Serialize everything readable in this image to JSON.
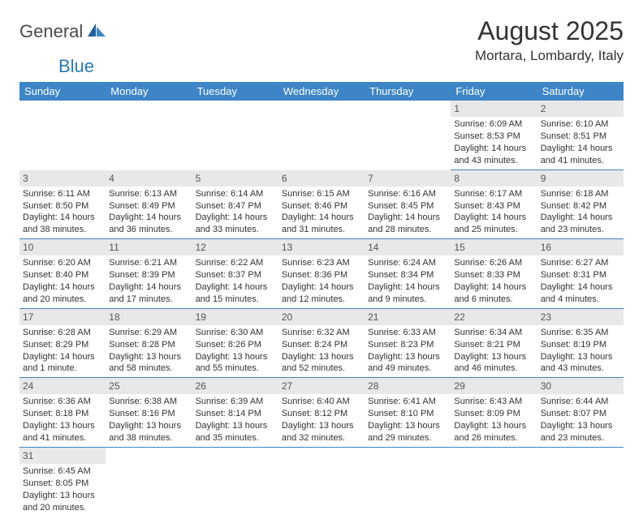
{
  "brand": {
    "general": "General",
    "blue": "Blue"
  },
  "title": {
    "month": "August 2025",
    "location": "Mortara, Lombardy, Italy"
  },
  "colors": {
    "header_bg": "#3d85c6",
    "header_text": "#ffffff",
    "daynum_bg": "#e8e8e8",
    "border": "#3d85c6",
    "logo_blue": "#2a7ab8",
    "text": "#333333"
  },
  "daysOfWeek": [
    "Sunday",
    "Monday",
    "Tuesday",
    "Wednesday",
    "Thursday",
    "Friday",
    "Saturday"
  ],
  "weeks": [
    [
      null,
      null,
      null,
      null,
      null,
      {
        "n": "1",
        "sunrise": "Sunrise: 6:09 AM",
        "sunset": "Sunset: 8:53 PM",
        "daylight": "Daylight: 14 hours and 43 minutes."
      },
      {
        "n": "2",
        "sunrise": "Sunrise: 6:10 AM",
        "sunset": "Sunset: 8:51 PM",
        "daylight": "Daylight: 14 hours and 41 minutes."
      }
    ],
    [
      {
        "n": "3",
        "sunrise": "Sunrise: 6:11 AM",
        "sunset": "Sunset: 8:50 PM",
        "daylight": "Daylight: 14 hours and 38 minutes."
      },
      {
        "n": "4",
        "sunrise": "Sunrise: 6:13 AM",
        "sunset": "Sunset: 8:49 PM",
        "daylight": "Daylight: 14 hours and 36 minutes."
      },
      {
        "n": "5",
        "sunrise": "Sunrise: 6:14 AM",
        "sunset": "Sunset: 8:47 PM",
        "daylight": "Daylight: 14 hours and 33 minutes."
      },
      {
        "n": "6",
        "sunrise": "Sunrise: 6:15 AM",
        "sunset": "Sunset: 8:46 PM",
        "daylight": "Daylight: 14 hours and 31 minutes."
      },
      {
        "n": "7",
        "sunrise": "Sunrise: 6:16 AM",
        "sunset": "Sunset: 8:45 PM",
        "daylight": "Daylight: 14 hours and 28 minutes."
      },
      {
        "n": "8",
        "sunrise": "Sunrise: 6:17 AM",
        "sunset": "Sunset: 8:43 PM",
        "daylight": "Daylight: 14 hours and 25 minutes."
      },
      {
        "n": "9",
        "sunrise": "Sunrise: 6:18 AM",
        "sunset": "Sunset: 8:42 PM",
        "daylight": "Daylight: 14 hours and 23 minutes."
      }
    ],
    [
      {
        "n": "10",
        "sunrise": "Sunrise: 6:20 AM",
        "sunset": "Sunset: 8:40 PM",
        "daylight": "Daylight: 14 hours and 20 minutes."
      },
      {
        "n": "11",
        "sunrise": "Sunrise: 6:21 AM",
        "sunset": "Sunset: 8:39 PM",
        "daylight": "Daylight: 14 hours and 17 minutes."
      },
      {
        "n": "12",
        "sunrise": "Sunrise: 6:22 AM",
        "sunset": "Sunset: 8:37 PM",
        "daylight": "Daylight: 14 hours and 15 minutes."
      },
      {
        "n": "13",
        "sunrise": "Sunrise: 6:23 AM",
        "sunset": "Sunset: 8:36 PM",
        "daylight": "Daylight: 14 hours and 12 minutes."
      },
      {
        "n": "14",
        "sunrise": "Sunrise: 6:24 AM",
        "sunset": "Sunset: 8:34 PM",
        "daylight": "Daylight: 14 hours and 9 minutes."
      },
      {
        "n": "15",
        "sunrise": "Sunrise: 6:26 AM",
        "sunset": "Sunset: 8:33 PM",
        "daylight": "Daylight: 14 hours and 6 minutes."
      },
      {
        "n": "16",
        "sunrise": "Sunrise: 6:27 AM",
        "sunset": "Sunset: 8:31 PM",
        "daylight": "Daylight: 14 hours and 4 minutes."
      }
    ],
    [
      {
        "n": "17",
        "sunrise": "Sunrise: 6:28 AM",
        "sunset": "Sunset: 8:29 PM",
        "daylight": "Daylight: 14 hours and 1 minute."
      },
      {
        "n": "18",
        "sunrise": "Sunrise: 6:29 AM",
        "sunset": "Sunset: 8:28 PM",
        "daylight": "Daylight: 13 hours and 58 minutes."
      },
      {
        "n": "19",
        "sunrise": "Sunrise: 6:30 AM",
        "sunset": "Sunset: 8:26 PM",
        "daylight": "Daylight: 13 hours and 55 minutes."
      },
      {
        "n": "20",
        "sunrise": "Sunrise: 6:32 AM",
        "sunset": "Sunset: 8:24 PM",
        "daylight": "Daylight: 13 hours and 52 minutes."
      },
      {
        "n": "21",
        "sunrise": "Sunrise: 6:33 AM",
        "sunset": "Sunset: 8:23 PM",
        "daylight": "Daylight: 13 hours and 49 minutes."
      },
      {
        "n": "22",
        "sunrise": "Sunrise: 6:34 AM",
        "sunset": "Sunset: 8:21 PM",
        "daylight": "Daylight: 13 hours and 46 minutes."
      },
      {
        "n": "23",
        "sunrise": "Sunrise: 6:35 AM",
        "sunset": "Sunset: 8:19 PM",
        "daylight": "Daylight: 13 hours and 43 minutes."
      }
    ],
    [
      {
        "n": "24",
        "sunrise": "Sunrise: 6:36 AM",
        "sunset": "Sunset: 8:18 PM",
        "daylight": "Daylight: 13 hours and 41 minutes."
      },
      {
        "n": "25",
        "sunrise": "Sunrise: 6:38 AM",
        "sunset": "Sunset: 8:16 PM",
        "daylight": "Daylight: 13 hours and 38 minutes."
      },
      {
        "n": "26",
        "sunrise": "Sunrise: 6:39 AM",
        "sunset": "Sunset: 8:14 PM",
        "daylight": "Daylight: 13 hours and 35 minutes."
      },
      {
        "n": "27",
        "sunrise": "Sunrise: 6:40 AM",
        "sunset": "Sunset: 8:12 PM",
        "daylight": "Daylight: 13 hours and 32 minutes."
      },
      {
        "n": "28",
        "sunrise": "Sunrise: 6:41 AM",
        "sunset": "Sunset: 8:10 PM",
        "daylight": "Daylight: 13 hours and 29 minutes."
      },
      {
        "n": "29",
        "sunrise": "Sunrise: 6:43 AM",
        "sunset": "Sunset: 8:09 PM",
        "daylight": "Daylight: 13 hours and 26 minutes."
      },
      {
        "n": "30",
        "sunrise": "Sunrise: 6:44 AM",
        "sunset": "Sunset: 8:07 PM",
        "daylight": "Daylight: 13 hours and 23 minutes."
      }
    ],
    [
      {
        "n": "31",
        "sunrise": "Sunrise: 6:45 AM",
        "sunset": "Sunset: 8:05 PM",
        "daylight": "Daylight: 13 hours and 20 minutes.",
        "last": true
      },
      null,
      null,
      null,
      null,
      null,
      null
    ]
  ]
}
